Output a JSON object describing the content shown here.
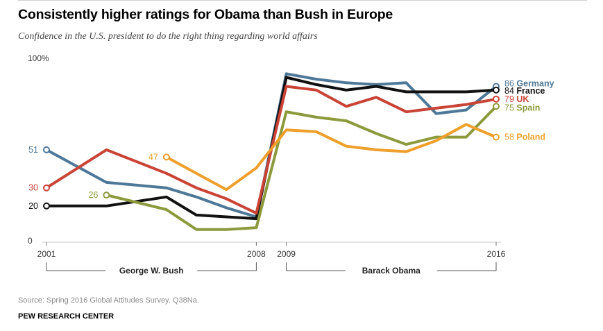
{
  "header": {
    "title": "Consistently higher ratings for Obama than Bush in Europe",
    "subtitle": "Confidence in the U.S. president to do the right thing regarding world affairs"
  },
  "footer": {
    "source": "Source: Spring 2016 Global Attitudes Survey. Q38Na.",
    "org": "PEW RESEARCH CENTER"
  },
  "chart_data": {
    "type": "line",
    "ylim": [
      0,
      100
    ],
    "xlim": [
      2001,
      2016
    ],
    "y_tick_labels": [
      {
        "value": 100,
        "label": "100%"
      },
      {
        "value": 0,
        "label": "0"
      }
    ],
    "x_tick_labels": [
      {
        "value": 2001,
        "label": "2001"
      },
      {
        "value": 2008,
        "label": "2008"
      },
      {
        "value": 2009,
        "label": "2009"
      },
      {
        "value": 2016,
        "label": "2016"
      }
    ],
    "periods": [
      {
        "label": "George W. Bush",
        "start": 2001,
        "end": 2008
      },
      {
        "label": "Barack Obama",
        "start": 2009,
        "end": 2016
      }
    ],
    "series": [
      {
        "name": "Germany",
        "color": "#4e7898",
        "start_label": "51",
        "end_label": "86",
        "end_offset": -4,
        "points": [
          [
            2001,
            51
          ],
          [
            2003,
            33
          ],
          [
            2005,
            30
          ],
          [
            2006,
            25
          ],
          [
            2007,
            19
          ],
          [
            2008,
            14
          ],
          [
            2009,
            93
          ],
          [
            2010,
            90
          ],
          [
            2011,
            88
          ],
          [
            2012,
            87
          ],
          [
            2013,
            88
          ],
          [
            2014,
            71
          ],
          [
            2015,
            73
          ],
          [
            2016,
            86
          ]
        ]
      },
      {
        "name": "France",
        "color": "#111111",
        "start_label": "20",
        "end_label": "84",
        "end_offset": 1,
        "points": [
          [
            2001,
            20
          ],
          [
            2003,
            20
          ],
          [
            2005,
            25
          ],
          [
            2006,
            15
          ],
          [
            2007,
            14
          ],
          [
            2008,
            13
          ],
          [
            2009,
            91
          ],
          [
            2010,
            87
          ],
          [
            2011,
            84
          ],
          [
            2012,
            86
          ],
          [
            2013,
            83
          ],
          [
            2014,
            83
          ],
          [
            2015,
            83
          ],
          [
            2016,
            84
          ]
        ]
      },
      {
        "name": "UK",
        "color": "#c94336",
        "start_label": "30",
        "end_label": "79",
        "end_offset": 0,
        "points": [
          [
            2001,
            30
          ],
          [
            2003,
            51
          ],
          [
            2005,
            38
          ],
          [
            2006,
            30
          ],
          [
            2007,
            24
          ],
          [
            2008,
            16
          ],
          [
            2009,
            86
          ],
          [
            2010,
            84
          ],
          [
            2011,
            75
          ],
          [
            2012,
            80
          ],
          [
            2013,
            72
          ],
          [
            2014,
            74
          ],
          [
            2015,
            76
          ],
          [
            2016,
            79
          ]
        ]
      },
      {
        "name": "Spain",
        "color": "#8c9a3c",
        "start_label": "26",
        "end_label": "75",
        "end_offset": 2,
        "points": [
          [
            2003,
            26
          ],
          [
            2005,
            18
          ],
          [
            2006,
            7
          ],
          [
            2007,
            7
          ],
          [
            2008,
            8
          ],
          [
            2009,
            72
          ],
          [
            2010,
            69
          ],
          [
            2011,
            67
          ],
          [
            2012,
            60
          ],
          [
            2013,
            54
          ],
          [
            2014,
            58
          ],
          [
            2015,
            58
          ],
          [
            2016,
            75
          ]
        ]
      },
      {
        "name": "Poland",
        "color": "#ee9f2c",
        "start_label": "47",
        "end_label": "58",
        "end_offset": 0,
        "points": [
          [
            2005,
            47
          ],
          [
            2007,
            29
          ],
          [
            2008,
            41
          ],
          [
            2009,
            62
          ],
          [
            2010,
            61
          ],
          [
            2011,
            53
          ],
          [
            2012,
            51
          ],
          [
            2013,
            50
          ],
          [
            2014,
            56
          ],
          [
            2015,
            65
          ],
          [
            2016,
            58
          ]
        ]
      }
    ]
  }
}
